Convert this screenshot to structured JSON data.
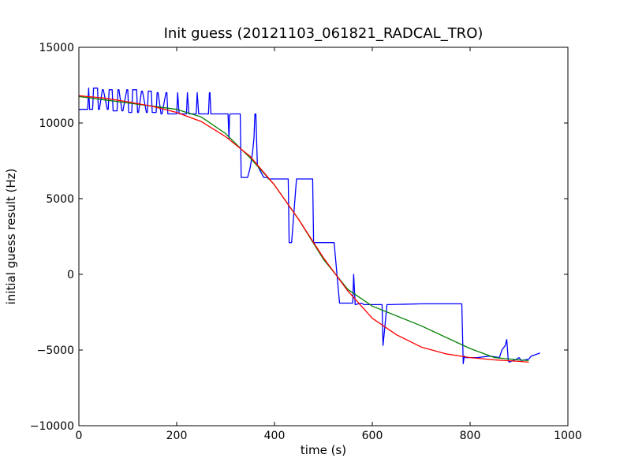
{
  "chart_data": {
    "type": "line",
    "title": "Init guess (20121103_061821_RADCAL_TRO)",
    "xlabel": "time (s)",
    "ylabel": "initial guess result (Hz)",
    "xlim": [
      0,
      1000
    ],
    "ylim": [
      -10000,
      15000
    ],
    "x_ticks": [
      0,
      200,
      400,
      600,
      800,
      1000
    ],
    "x_tick_labels": [
      "0",
      "200",
      "400",
      "600",
      "800",
      "1000"
    ],
    "y_ticks": [
      -10000,
      -5000,
      0,
      5000,
      10000,
      15000
    ],
    "y_tick_labels": [
      "−10000",
      "−5000",
      "0",
      "5000",
      "10000",
      "15000"
    ],
    "grid": false,
    "series": [
      {
        "color": "#0000ff",
        "x": [
          0,
          18,
          20,
          22,
          28,
          30,
          38,
          40,
          42,
          48,
          50,
          58,
          60,
          62,
          68,
          70,
          78,
          80,
          82,
          88,
          90,
          98,
          100,
          102,
          108,
          110,
          118,
          120,
          122,
          128,
          130,
          138,
          140,
          142,
          148,
          150,
          158,
          160,
          162,
          168,
          170,
          178,
          180,
          182,
          190,
          200,
          202,
          205,
          208,
          220,
          222,
          225,
          228,
          240,
          242,
          245,
          248,
          265,
          267,
          268,
          270,
          290,
          305,
          307,
          308,
          310,
          330,
          332,
          345,
          350,
          355,
          358,
          360,
          362,
          365,
          378,
          385,
          388,
          420,
          425,
          428,
          430,
          435,
          440,
          445,
          448,
          478,
          480,
          520,
          522,
          533,
          560,
          562,
          565,
          578,
          583,
          620,
          622,
          625,
          630,
          635,
          700,
          783,
          786,
          788,
          790,
          800,
          815,
          840,
          860,
          865,
          872,
          875,
          878,
          880,
          895,
          900,
          905,
          920,
          925,
          943
        ],
        "y": [
          10900,
          10900,
          12300,
          10900,
          10900,
          12300,
          12300,
          10900,
          10900,
          12200,
          12200,
          10900,
          10900,
          12200,
          12200,
          10800,
          10800,
          12200,
          12200,
          10800,
          10800,
          12200,
          12200,
          10700,
          10700,
          12200,
          12200,
          10700,
          10700,
          12100,
          12100,
          10700,
          10700,
          12100,
          12100,
          10700,
          10700,
          12000,
          12000,
          10600,
          10600,
          12000,
          12000,
          10600,
          10600,
          10600,
          12000,
          10600,
          10600,
          10600,
          12000,
          10600,
          10600,
          10600,
          12000,
          10600,
          10600,
          10600,
          12000,
          12000,
          10600,
          10600,
          10600,
          9000,
          10500,
          10600,
          10600,
          6400,
          6400,
          7000,
          8000,
          9000,
          10600,
          10600,
          7200,
          6400,
          6400,
          6300,
          6300,
          6300,
          6300,
          2100,
          2100,
          4200,
          6300,
          6300,
          6300,
          2100,
          2100,
          2100,
          -1900,
          -1900,
          0,
          -2000,
          -1900,
          -2000,
          -2000,
          -4700,
          -3700,
          -2000,
          -2000,
          -1950,
          -1950,
          -5900,
          -5400,
          -5500,
          -5500,
          -5500,
          -5400,
          -5500,
          -5000,
          -4700,
          -4300,
          -5700,
          -5800,
          -5600,
          -5500,
          -5700,
          -5600,
          -5400,
          -5200
        ]
      },
      {
        "color": "#008000",
        "x": [
          0,
          200,
          250,
          300,
          350,
          400,
          450,
          500,
          550,
          600,
          700,
          800,
          850,
          900,
          920
        ],
        "y": [
          11750,
          10900,
          10400,
          9300,
          7700,
          5900,
          3600,
          1000,
          -1000,
          -2100,
          -3400,
          -4900,
          -5500,
          -5650,
          -5700
        ]
      },
      {
        "color": "#ff0000",
        "x": [
          0,
          50,
          100,
          150,
          200,
          250,
          300,
          350,
          400,
          450,
          500,
          550,
          600,
          650,
          700,
          750,
          800,
          850,
          900,
          920
        ],
        "y": [
          11800,
          11650,
          11400,
          11100,
          10700,
          10100,
          9100,
          7800,
          5900,
          3600,
          1100,
          -1100,
          -2900,
          -4000,
          -4800,
          -5250,
          -5500,
          -5650,
          -5750,
          -5800
        ]
      }
    ]
  }
}
